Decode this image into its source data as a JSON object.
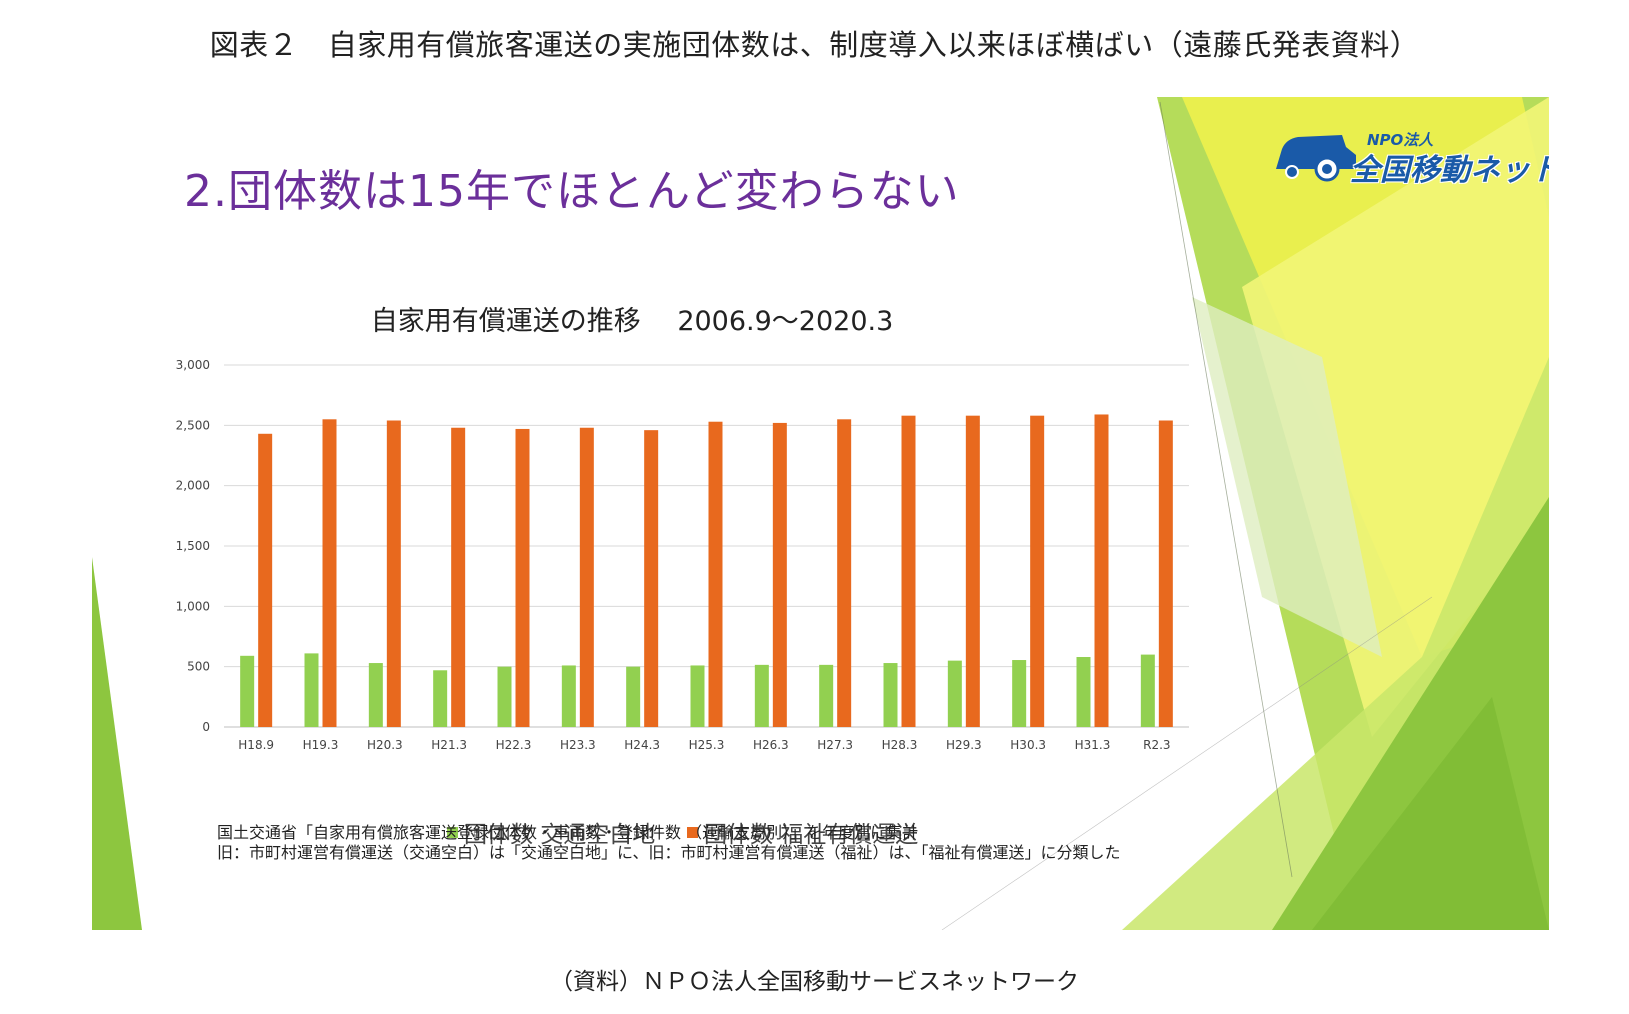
{
  "page": {
    "title": "図表２　自家用有償旅客運送の実施団体数は、制度導入以来ほぼ横ばい（遠藤氏発表資料）",
    "source": "（資料）ＮＰＯ法人全国移動サービスネットワーク"
  },
  "slide": {
    "heading": "2.団体数は15年でほとんど変わらない",
    "logo_small": "NPO法人",
    "logo_main": "全国移動ネット",
    "notes": [
      "国土交通省「自家用有償旅客運送登録団体数・車両数・登録件数 （運輸支局別）」を年度別に集計",
      "旧：市町村運営有償運送（交通空白）は「交通空白地」に、旧：市町村運営有償運送（福祉）は、「福祉有償運送」に分類した"
    ],
    "colors": {
      "heading": "#6b2f9a",
      "green_decor": "#8dc63f",
      "yellow_decor": "#e8f04a"
    }
  },
  "chart_data": {
    "type": "bar",
    "title": "自家用有償運送の推移",
    "subtitle": "2006.9～2020.3",
    "categories": [
      "H18.9",
      "H19.3",
      "H20.3",
      "H21.3",
      "H22.3",
      "H23.3",
      "H24.3",
      "H25.3",
      "H26.3",
      "H27.3",
      "H28.3",
      "H29.3",
      "H30.3",
      "H31.3",
      "R2.3"
    ],
    "series": [
      {
        "name": "団体数 交通空白地",
        "color": "#92d050",
        "values": [
          590,
          610,
          530,
          470,
          500,
          510,
          500,
          510,
          515,
          515,
          530,
          550,
          555,
          580,
          600
        ]
      },
      {
        "name": "団体数 福祉有償運送",
        "color": "#e8691e",
        "values": [
          2430,
          2550,
          2540,
          2480,
          2470,
          2480,
          2460,
          2530,
          2520,
          2550,
          2580,
          2580,
          2580,
          2590,
          2540
        ]
      }
    ],
    "ylim": [
      0,
      3000
    ],
    "yticks": [
      "0",
      "500",
      "1,000",
      "1,500",
      "2,000",
      "2,500",
      "3,000"
    ],
    "ytick_values": [
      0,
      500,
      1000,
      1500,
      2000,
      2500,
      3000
    ],
    "grid": true,
    "legend_position": "bottom"
  }
}
